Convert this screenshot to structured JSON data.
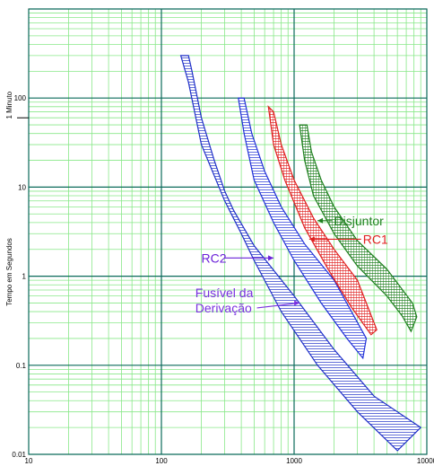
{
  "chart_data": {
    "type": "line",
    "title": "",
    "xlabel": "",
    "ylabel": "Tempo em Segundos",
    "x_scale": "log",
    "y_scale": "log",
    "xlim": [
      10,
      10000
    ],
    "ylim": [
      0.01,
      1000
    ],
    "grid": true,
    "x_tick_labels": [
      "10",
      "100",
      "1000",
      "10000"
    ],
    "y_tick_labels": [
      "0.01",
      "0.1",
      "1",
      "10",
      "100"
    ],
    "y_marker": {
      "label": "1 Minuto",
      "value": 60
    },
    "series": [
      {
        "name": "Fusível da Derivação",
        "color": "#2030c8",
        "band_upper": [
          [
            160,
            300
          ],
          [
            170,
            200
          ],
          [
            200,
            60
          ],
          [
            250,
            20
          ],
          [
            300,
            9
          ],
          [
            350,
            5.5
          ],
          [
            500,
            2.2
          ],
          [
            1000,
            0.6
          ],
          [
            2000,
            0.15
          ],
          [
            4000,
            0.045
          ],
          [
            9000,
            0.02
          ]
        ],
        "band_lower": [
          [
            140,
            300
          ],
          [
            160,
            150
          ],
          [
            200,
            30
          ],
          [
            300,
            7
          ],
          [
            400,
            3
          ],
          [
            500,
            1.5
          ],
          [
            800,
            0.4
          ],
          [
            1500,
            0.1
          ],
          [
            3000,
            0.03
          ],
          [
            6000,
            0.011
          ],
          [
            9000,
            0.02
          ]
        ]
      },
      {
        "name": "RC2",
        "color": "#2030d8",
        "band_upper": [
          [
            420,
            100
          ],
          [
            480,
            40
          ],
          [
            600,
            15
          ],
          [
            800,
            6
          ],
          [
            1200,
            2.3
          ],
          [
            2000,
            0.9
          ],
          [
            3500,
            0.2
          ]
        ],
        "band_lower": [
          [
            380,
            100
          ],
          [
            420,
            40
          ],
          [
            500,
            12
          ],
          [
            700,
            4
          ],
          [
            1000,
            1.5
          ],
          [
            1600,
            0.5
          ],
          [
            2500,
            0.2
          ],
          [
            3300,
            0.12
          ]
        ]
      },
      {
        "name": "RC1",
        "color": "#e02020",
        "band_upper": [
          [
            700,
            70
          ],
          [
            800,
            30
          ],
          [
            1000,
            12
          ],
          [
            1400,
            4.5
          ],
          [
            2000,
            2
          ],
          [
            3000,
            0.9
          ],
          [
            4200,
            0.25
          ]
        ],
        "band_lower": [
          [
            640,
            80
          ],
          [
            700,
            30
          ],
          [
            850,
            12
          ],
          [
            1200,
            3.5
          ],
          [
            1800,
            1.2
          ],
          [
            2700,
            0.45
          ],
          [
            3800,
            0.22
          ]
        ]
      },
      {
        "name": "Disjuntor",
        "color": "#208020",
        "band_upper": [
          [
            1250,
            50
          ],
          [
            1350,
            25
          ],
          [
            1600,
            12
          ],
          [
            2000,
            6
          ],
          [
            3000,
            2.5
          ],
          [
            5000,
            1.2
          ],
          [
            7800,
            0.5
          ],
          [
            8400,
            0.35
          ]
        ],
        "band_lower": [
          [
            1100,
            50
          ],
          [
            1200,
            20
          ],
          [
            1400,
            8
          ],
          [
            2000,
            3
          ],
          [
            3000,
            1.3
          ],
          [
            5000,
            0.6
          ],
          [
            6500,
            0.36
          ],
          [
            7600,
            0.24
          ]
        ]
      }
    ],
    "annotations": [
      {
        "text": "Disjuntor",
        "color": "#208020",
        "at": [
          1500,
          4.2
        ],
        "label_at": [
          2000,
          4.2
        ]
      },
      {
        "text": "RC1",
        "color": "#e02020",
        "at": [
          1300,
          2.6
        ],
        "label_at": [
          3300,
          2.6
        ]
      },
      {
        "text": "RC2",
        "color": "#6a20d8",
        "at": [
          700,
          1.6
        ],
        "label_at": [
          200,
          1.6
        ]
      },
      {
        "text": "Fusível da",
        "color": "#7a30e0",
        "at": null,
        "label_at": [
          180,
          0.65
        ]
      },
      {
        "text": "Derivação",
        "color": "#7a30e0",
        "at": [
          1100,
          0.5
        ],
        "label_at": [
          180,
          0.44
        ]
      }
    ]
  }
}
